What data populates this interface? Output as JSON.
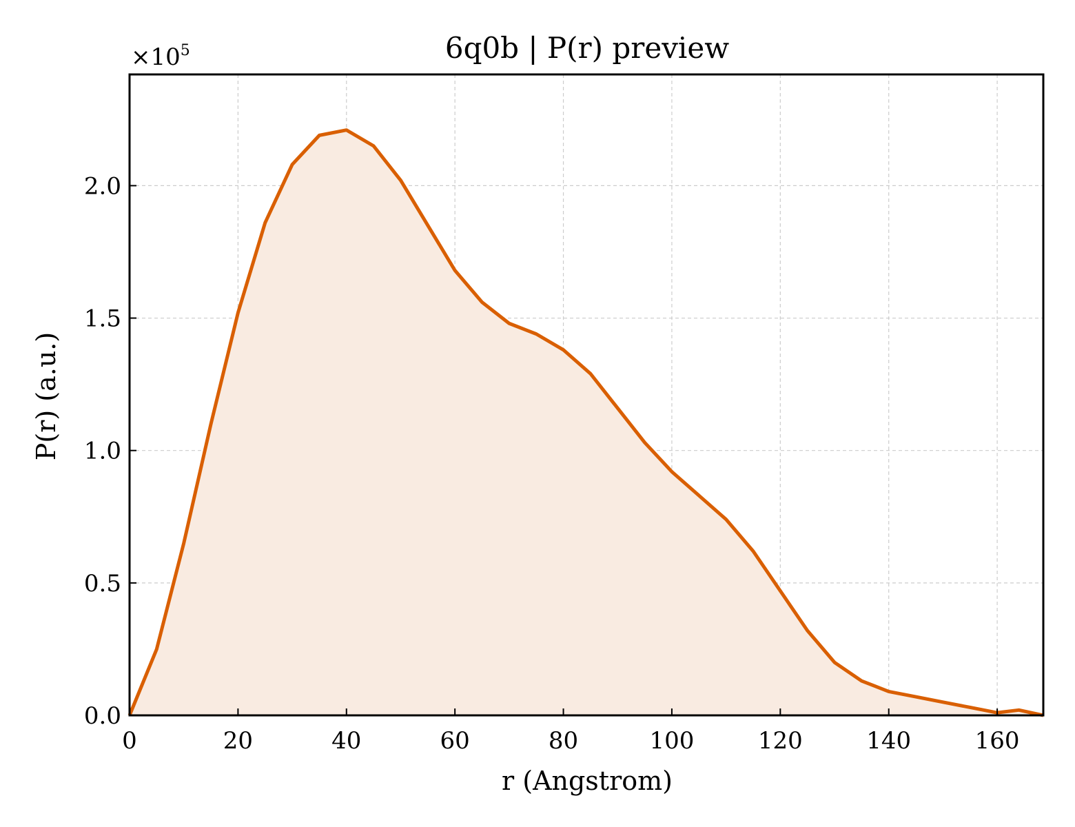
{
  "chart_data": {
    "type": "area",
    "title": "6q0b | P(r) preview",
    "xlabel": "r (Angstrom)",
    "ylabel": "P(r) (a.u.)",
    "y_offset_label": {
      "base": "×10",
      "exponent": "5"
    },
    "xlim": [
      0,
      168.5
    ],
    "ylim": [
      0,
      2.42
    ],
    "x_ticks": [
      0,
      20,
      40,
      60,
      80,
      100,
      120,
      140,
      160
    ],
    "x_tick_labels": [
      "0",
      "20",
      "40",
      "60",
      "80",
      "100",
      "120",
      "140",
      "160"
    ],
    "y_ticks": [
      0,
      0.5,
      1.0,
      1.5,
      2.0
    ],
    "y_tick_labels": [
      "0.0",
      "0.5",
      "1.0",
      "1.5",
      "2.0"
    ],
    "grid": true,
    "colors": {
      "line": "#d95f02",
      "fill": "#f9ebe1",
      "grid": "#cccccc"
    },
    "series": [
      {
        "x": [
          0,
          5,
          10,
          15,
          20,
          25,
          30,
          35,
          40,
          45,
          50,
          55,
          60,
          65,
          70,
          75,
          80,
          85,
          90,
          95,
          100,
          105,
          110,
          115,
          120,
          125,
          130,
          135,
          140,
          145,
          150,
          155,
          160,
          164,
          168.5
        ],
        "y": [
          0,
          0.25,
          0.65,
          1.1,
          1.52,
          1.86,
          2.08,
          2.19,
          2.21,
          2.15,
          2.02,
          1.85,
          1.68,
          1.56,
          1.48,
          1.44,
          1.38,
          1.29,
          1.16,
          1.03,
          0.92,
          0.83,
          0.74,
          0.62,
          0.47,
          0.32,
          0.2,
          0.13,
          0.09,
          0.07,
          0.05,
          0.03,
          0.01,
          0.02,
          0.0
        ]
      }
    ]
  }
}
